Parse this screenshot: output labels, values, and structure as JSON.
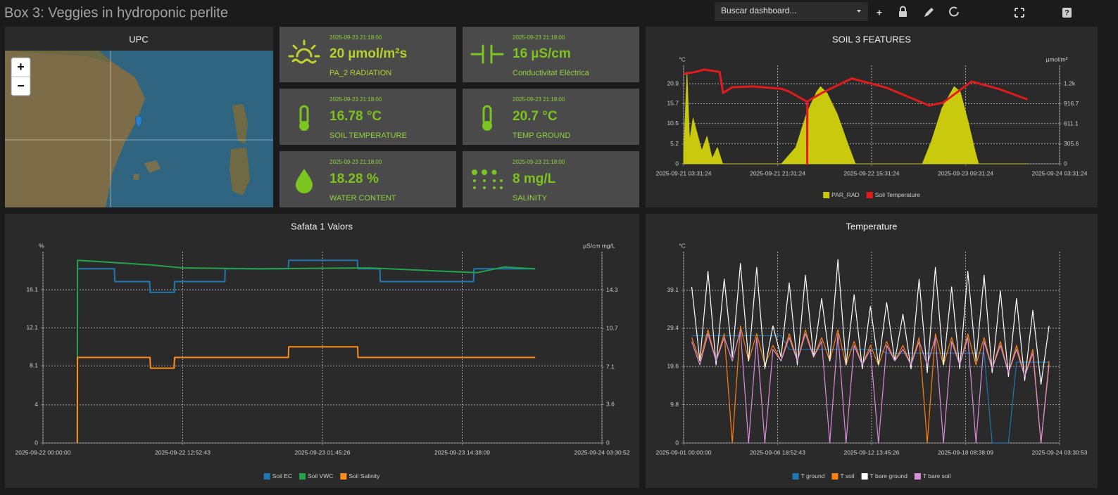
{
  "header": {
    "title": "Box 3: Veggies in hydroponic perlite",
    "search": "Buscar dashboard...",
    "add": "+",
    "help": "?"
  },
  "map": {
    "title": "UPC",
    "zoom_in": "+",
    "zoom_out": "−"
  },
  "cards": [
    {
      "time": "2025-09-23 21:18:00",
      "value": "20 µmol/m²s",
      "label": "PA_2 RADIATION"
    },
    {
      "time": "2025-09-23 21:18:00",
      "value": "16 µS/cm",
      "label": "Conductivitat Elèctrica"
    },
    {
      "time": "2025-09-23 21:18:00",
      "value": "16.78 °C",
      "label": "SOIL TEMPERATURE"
    },
    {
      "time": "2025-09-23 21:18:00",
      "value": "20.7 °C",
      "label": "TEMP GROUND"
    },
    {
      "time": "2025-09-23 21:18:00",
      "value": "18.28 %",
      "label": "WATER CONTENT"
    },
    {
      "time": "2025-09-23 21:18:00",
      "value": "8 mg/L",
      "label": "SALINITY"
    }
  ],
  "chart_data": [
    {
      "type": "line",
      "title": "SOIL 3 FEATURES",
      "ylabel": "°C",
      "y2label": "µmol/m²",
      "xlim": [
        "2025-09-21 03:31:24",
        "2025-09-24 03:31:24"
      ],
      "xticks": [
        "2025-09-21 03:31:24",
        "2025-09-21 21:31:24",
        "2025-09-22 15:31:24",
        "2025-09-23 09:31:24",
        "2025-09-24 03:31:24"
      ],
      "ylim": [
        0,
        25.7
      ],
      "yticks": [
        0,
        5.2,
        10.5,
        15.7,
        20.9
      ],
      "y2lim": [
        0,
        1503
      ],
      "y2ticks": [
        0,
        305.6,
        611.1,
        916.7,
        {
          "value": 1222.2,
          "label": "1.2k"
        }
      ],
      "grid": true,
      "series": [
        {
          "name": "PAR_RAD",
          "type": "area",
          "color": "#c9c90e",
          "axis": "y2",
          "x": [
            "2025-09-21 03:31:24",
            "2025-09-21 04:10:00",
            "2025-09-21 04:40:00",
            "2025-09-21 05:20:00",
            "2025-09-21 06:10:00",
            "2025-09-21 07:00:00",
            "2025-09-21 08:00:00",
            "2025-09-21 09:00:00",
            "2025-09-21 10:00:00",
            "2025-09-21 11:00:00",
            "2025-09-21 22:15:00",
            "2025-09-22 01:00:00",
            "2025-09-22 03:00:00",
            "2025-09-22 05:00:00",
            "2025-09-22 05:45:00",
            "2025-09-22 07:00:00",
            "2025-09-22 09:00:00",
            "2025-09-22 11:00:00",
            "2025-09-22 12:25:00",
            "2025-09-23 01:15:00",
            "2025-09-23 03:00:00",
            "2025-09-23 05:00:00",
            "2025-09-23 07:20:00",
            "2025-09-23 08:30:00",
            "2025-09-23 10:00:00",
            "2025-09-23 11:20:00",
            "2025-09-23 12:00:00",
            "2025-09-23 21:25:00"
          ],
          "values": [
            150,
            1400,
            350,
            700,
            450,
            200,
            420,
            80,
            250,
            0,
            0,
            250,
            750,
            1100,
            1180,
            1080,
            750,
            300,
            0,
            0,
            350,
            850,
            1180,
            1100,
            650,
            200,
            0,
            0
          ]
        },
        {
          "name": "Soil Temperature",
          "color": "#e31a1c",
          "x": [
            "2025-09-21 03:31:24",
            "2025-09-21 05:30:00",
            "2025-09-21 07:25:00",
            "2025-09-21 10:25:00",
            "2025-09-21 11:05:00",
            "2025-09-21 12:50:00",
            "2025-09-21 16:50:00",
            "2025-09-21 22:15:00",
            "2025-09-21 23:40:00",
            "2025-09-22 03:10:00",
            "2025-09-22 03:12:00",
            "2025-09-22 03:14:00",
            "2025-09-22 06:00:00",
            "2025-09-22 11:45:00",
            "2025-09-22 18:30:00",
            "2025-09-23 02:35:00",
            "2025-09-23 05:15:00",
            "2025-09-23 10:40:00",
            "2025-09-23 16:00:00",
            "2025-09-23 21:25:00"
          ],
          "values": [
            23.5,
            23.9,
            24.6,
            24.0,
            18.5,
            20.0,
            20.2,
            19.6,
            18.9,
            16.2,
            0,
            16.3,
            18.5,
            22.3,
            19.8,
            15.2,
            16.0,
            21.5,
            19.5,
            16.8
          ]
        }
      ]
    },
    {
      "type": "line",
      "title": "Safata 1 Valors",
      "ylabel": "%",
      "y2label": "µS/cm mg/L",
      "xlim": [
        "2025-09-22 00:00:00",
        "2025-09-24 03:30:52"
      ],
      "xticks": [
        "2025-09-22 00:00:00",
        "2025-09-22 12:52:43",
        "2025-09-23 01:45:26",
        "2025-09-23 14:38:09",
        "2025-09-24 03:30:52"
      ],
      "ylim": [
        0,
        20.1
      ],
      "yticks": [
        0,
        4,
        8.1,
        12.1,
        16.1
      ],
      "y2lim": [
        0,
        17.9
      ],
      "y2ticks": [
        0,
        3.6,
        7.1,
        10.7,
        14.3
      ],
      "grid": true,
      "series": [
        {
          "name": "Soil EC",
          "color": "#1f77b4",
          "axis": "y2",
          "x": [
            "2025-09-22 03:11:00",
            "2025-09-22 06:35:00",
            "2025-09-22 06:37:00",
            "2025-09-22 09:50:00",
            "2025-09-22 09:52:00",
            "2025-09-22 12:06:00",
            "2025-09-22 12:08:00",
            "2025-09-22 16:46:00",
            "2025-09-22 16:48:00",
            "2025-09-22 22:37:00",
            "2025-09-22 22:39:00",
            "2025-09-23 04:59:00",
            "2025-09-23 05:01:00",
            "2025-09-23 07:03:00",
            "2025-09-23 07:05:00",
            "2025-09-23 15:41:00",
            "2025-09-23 15:43:00",
            "2025-09-23 21:22:00"
          ],
          "values": [
            16.3,
            16.3,
            15.1,
            15.1,
            14.1,
            14.1,
            15.1,
            15.1,
            16.3,
            16.3,
            17.1,
            17.1,
            16.3,
            16.3,
            15.1,
            15.1,
            16.3,
            16.3
          ]
        },
        {
          "name": "Soil VWC",
          "color": "#22a34a",
          "x": [
            "2025-09-22 03:10:00",
            "2025-09-22 03:11:00",
            "2025-09-22 06:00:00",
            "2025-09-22 10:00:00",
            "2025-09-22 12:52:00",
            "2025-09-22 20:00:00",
            "2025-09-23 06:00:00",
            "2025-09-23 12:00:00",
            "2025-09-23 16:00:00",
            "2025-09-23 18:30:00",
            "2025-09-23 21:22:00"
          ],
          "values": [
            0,
            19.2,
            19.0,
            18.7,
            18.4,
            18.3,
            18.4,
            18.1,
            17.9,
            18.5,
            18.3
          ]
        },
        {
          "name": "Soil Salinity",
          "color": "#ff8c1a",
          "axis": "y2",
          "x": [
            "2025-09-22 03:10:00",
            "2025-09-22 03:11:00",
            "2025-09-22 09:52:00",
            "2025-09-22 09:55:00",
            "2025-09-22 12:05:00",
            "2025-09-22 12:08:00",
            "2025-09-22 22:37:00",
            "2025-09-22 22:39:00",
            "2025-09-23 05:00:00",
            "2025-09-23 05:02:00",
            "2025-09-23 21:22:00"
          ],
          "values": [
            0,
            8.0,
            8.0,
            7.0,
            7.0,
            8.0,
            8.0,
            9.0,
            9.0,
            8.0,
            8.0
          ]
        }
      ]
    },
    {
      "type": "line",
      "title": "Temperature",
      "ylabel": "°C",
      "xlim": [
        "2025-09-01 00:00:00",
        "2025-09-24 03:30:53"
      ],
      "xticks": [
        "2025-09-01 00:00:00",
        "2025-09-06 18:52:43",
        "2025-09-12 13:45:26",
        "2025-09-18 08:38:09",
        "2025-09-24 03:30:53"
      ],
      "ylim": [
        0,
        49
      ],
      "yticks": [
        0,
        9.8,
        19.6,
        29.4,
        39.1
      ],
      "grid": true,
      "x": [
        "2025-09-01 12:00:00",
        "2025-09-02 00:00:00",
        "2025-09-02 12:00:00",
        "2025-09-03 00:00:00",
        "2025-09-03 12:00:00",
        "2025-09-04 00:00:00",
        "2025-09-04 12:00:00",
        "2025-09-05 00:00:00",
        "2025-09-05 12:00:00",
        "2025-09-06 00:00:00",
        "2025-09-06 12:00:00",
        "2025-09-07 00:00:00",
        "2025-09-07 12:00:00",
        "2025-09-08 00:00:00",
        "2025-09-08 12:00:00",
        "2025-09-09 00:00:00",
        "2025-09-09 12:00:00",
        "2025-09-10 00:00:00",
        "2025-09-10 12:00:00",
        "2025-09-11 00:00:00",
        "2025-09-11 12:00:00",
        "2025-09-12 00:00:00",
        "2025-09-12 12:00:00",
        "2025-09-13 00:00:00",
        "2025-09-13 12:00:00",
        "2025-09-14 00:00:00",
        "2025-09-14 12:00:00",
        "2025-09-15 00:00:00",
        "2025-09-15 12:00:00",
        "2025-09-16 00:00:00",
        "2025-09-16 12:00:00",
        "2025-09-17 00:00:00",
        "2025-09-17 12:00:00",
        "2025-09-18 00:00:00",
        "2025-09-18 12:00:00",
        "2025-09-19 00:00:00",
        "2025-09-19 12:00:00",
        "2025-09-20 00:00:00",
        "2025-09-20 12:00:00",
        "2025-09-21 00:00:00",
        "2025-09-21 12:00:00",
        "2025-09-22 00:00:00",
        "2025-09-22 12:00:00",
        "2025-09-23 00:00:00",
        "2025-09-23 12:00:00"
      ],
      "series": [
        {
          "name": "T ground",
          "color": "#1f77b4",
          "values": [
            27.5,
            27.5,
            27.5,
            27.5,
            27.5,
            27.5,
            27.5,
            27.5,
            27.5,
            27.5,
            27.5,
            27.5,
            24,
            24,
            24,
            24,
            24,
            24,
            24,
            24,
            24,
            24,
            24,
            24,
            23,
            23,
            23,
            23,
            23,
            23,
            23,
            23,
            23,
            23,
            23,
            23,
            23,
            0,
            0,
            0,
            20.7,
            20.7,
            20.7,
            20.7,
            20.7
          ]
        },
        {
          "name": "T soil",
          "color": "#ff7f0e",
          "values": [
            27,
            21,
            29,
            21,
            28,
            0,
            30,
            21,
            28,
            20,
            25,
            21,
            28,
            21,
            29,
            22,
            27,
            21,
            29,
            20,
            26,
            20,
            25,
            20,
            26,
            21,
            25,
            20,
            27,
            0,
            28,
            20,
            27,
            20,
            28,
            20,
            27,
            19,
            26,
            18,
            25,
            17,
            24,
            0,
            21
          ]
        },
        {
          "name": "T bare ground",
          "color": "#ffffff",
          "values": [
            40,
            21,
            44,
            20,
            42,
            22,
            46,
            21,
            45,
            19,
            30,
            22,
            41,
            20,
            43,
            22,
            37,
            21,
            47,
            20,
            38,
            19,
            35,
            20,
            36,
            21,
            33,
            19,
            42,
            18,
            45,
            20,
            40,
            19,
            44,
            21,
            43,
            18,
            39,
            17,
            37,
            16,
            34,
            15,
            30
          ]
        },
        {
          "name": "T bare soil",
          "color": "#d98fd9",
          "values": [
            26,
            20,
            28,
            21,
            27,
            21,
            29,
            0,
            27,
            0,
            24,
            21,
            27,
            21,
            28,
            22,
            26,
            0,
            28,
            0,
            25,
            20,
            24,
            0,
            25,
            21,
            24,
            20,
            26,
            20,
            27,
            0,
            26,
            20,
            27,
            0,
            26,
            19,
            25,
            18,
            24,
            17,
            23,
            0,
            20
          ]
        }
      ]
    }
  ]
}
